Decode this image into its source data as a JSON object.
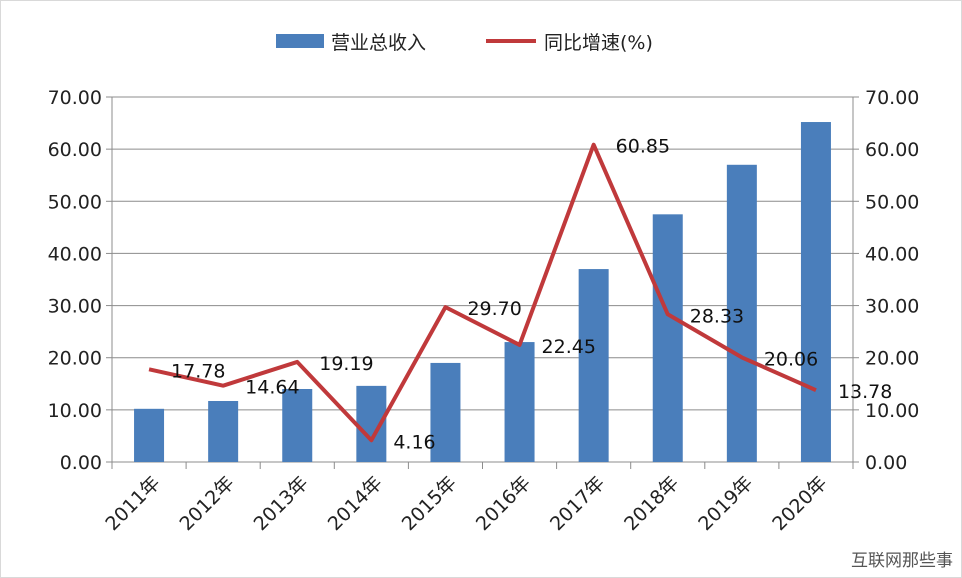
{
  "chart_data": {
    "type": "bar+line",
    "categories": [
      "2011年",
      "2012年",
      "2013年",
      "2014年",
      "2015年",
      "2016年",
      "2017年",
      "2018年",
      "2019年",
      "2020年"
    ],
    "series": [
      {
        "name": "营业总收入",
        "type": "bar",
        "axis": "left",
        "color": "#4a7ebb",
        "values": [
          10.2,
          11.7,
          14.0,
          14.6,
          19.0,
          23.0,
          37.0,
          47.5,
          57.0,
          65.2
        ]
      },
      {
        "name": "同比增速(%)",
        "type": "line",
        "axis": "right",
        "color": "#c0393b",
        "values": [
          17.78,
          14.64,
          19.19,
          4.16,
          29.7,
          22.45,
          60.85,
          28.33,
          20.06,
          13.78
        ],
        "labels": [
          "17.78",
          "14.64",
          "19.19",
          "4.16",
          "29.70",
          "22.45",
          "60.85",
          "28.33",
          "20.06",
          "13.78"
        ]
      }
    ],
    "ylim": [
      0,
      70
    ],
    "y2lim": [
      0,
      70
    ],
    "yticks": [
      "0.00",
      "10.00",
      "20.00",
      "30.00",
      "40.00",
      "50.00",
      "60.00",
      "70.00"
    ],
    "grid": true,
    "legend": "top"
  },
  "watermark": "互联网那些事"
}
